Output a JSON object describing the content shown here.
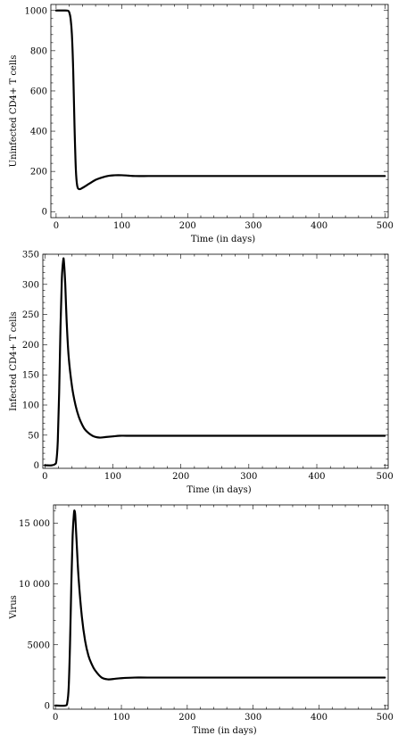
{
  "chart_data": [
    {
      "type": "line",
      "xlabel": "Time (in days)",
      "ylabel": "Uninfected CD4+ T cells",
      "xlim": [
        -8,
        505
      ],
      "ylim": [
        -30,
        1030
      ],
      "xticks": [
        0,
        100,
        200,
        300,
        400,
        500
      ],
      "yticks": [
        0,
        200,
        400,
        600,
        800,
        1000
      ],
      "ytick_labels": [
        "0",
        "200",
        "400",
        "600",
        "800",
        "1000"
      ],
      "series": [
        {
          "x": [
            0,
            10,
            18,
            20,
            22,
            24,
            26,
            28,
            30,
            32,
            35,
            40,
            50,
            60,
            70,
            80,
            90,
            100,
            110,
            120,
            140,
            160,
            200,
            300,
            400,
            500
          ],
          "y": [
            1000,
            1000,
            999,
            990,
            960,
            880,
            700,
            420,
            210,
            130,
            112,
            118,
            138,
            158,
            170,
            178,
            181,
            181,
            179,
            177,
            177,
            177,
            177,
            177,
            177,
            177
          ]
        }
      ]
    },
    {
      "type": "line",
      "xlabel": "Time (in days)",
      "ylabel": "Infected CD4+ T cells",
      "xlim": [
        -3,
        505
      ],
      "ylim": [
        -5,
        350
      ],
      "xticks": [
        0,
        100,
        200,
        300,
        400,
        500
      ],
      "yticks": [
        0,
        50,
        100,
        150,
        200,
        250,
        300,
        350
      ],
      "ytick_labels": [
        "0",
        "50",
        "100",
        "150",
        "200",
        "250",
        "300",
        "350"
      ],
      "series": [
        {
          "x": [
            0,
            10,
            15,
            17,
            19,
            21,
            23,
            25,
            27,
            28,
            30,
            32,
            35,
            40,
            45,
            50,
            55,
            60,
            70,
            80,
            90,
            100,
            110,
            120,
            140,
            200,
            300,
            400,
            500
          ],
          "y": [
            0,
            0,
            2,
            8,
            40,
            120,
            230,
            310,
            340,
            338,
            300,
            240,
            180,
            130,
            100,
            80,
            67,
            58,
            49,
            46,
            47,
            48,
            49,
            49,
            49,
            49,
            49,
            49,
            49
          ]
        }
      ]
    },
    {
      "type": "line",
      "xlabel": "Time (in days)",
      "ylabel": "Virus",
      "xlim": [
        -3,
        505
      ],
      "ylim": [
        -300,
        16500
      ],
      "xticks": [
        0,
        100,
        200,
        300,
        400,
        500
      ],
      "yticks": [
        0,
        5000,
        10000,
        15000
      ],
      "ytick_labels": [
        "0",
        "5000",
        "10 000",
        "15 000"
      ],
      "series": [
        {
          "x": [
            0,
            15,
            18,
            20,
            22,
            24,
            26,
            28,
            29,
            30,
            32,
            35,
            40,
            45,
            50,
            55,
            60,
            70,
            80,
            90,
            100,
            120,
            140,
            200,
            300,
            400,
            500
          ],
          "y": [
            0,
            0,
            300,
            1500,
            5000,
            10000,
            14000,
            15800,
            16000,
            15600,
            13500,
            10500,
            7300,
            5300,
            4100,
            3400,
            2900,
            2300,
            2150,
            2200,
            2250,
            2300,
            2300,
            2300,
            2300,
            2300,
            2300
          ]
        }
      ]
    }
  ]
}
